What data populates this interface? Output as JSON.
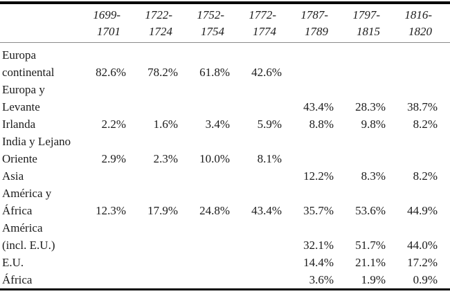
{
  "table": {
    "columns": [
      [
        "1699-",
        "1701"
      ],
      [
        "1722-",
        "1724"
      ],
      [
        "1752-",
        "1754"
      ],
      [
        "1772-",
        "1774"
      ],
      [
        "1787-",
        "1789"
      ],
      [
        "1797-",
        "1815"
      ],
      [
        "1816-",
        "1820"
      ]
    ],
    "rows": [
      {
        "label": [
          "Europa",
          "continental"
        ],
        "values": [
          "82.6%",
          "78.2%",
          "61.8%",
          "42.6%",
          "",
          "",
          ""
        ]
      },
      {
        "label": [
          "Europa y",
          "Levante"
        ],
        "values": [
          "",
          "",
          "",
          "",
          "43.4%",
          "28.3%",
          "38.7%"
        ]
      },
      {
        "label": [
          "Irlanda"
        ],
        "values": [
          "2.2%",
          "1.6%",
          "3.4%",
          "5.9%",
          "8.8%",
          "9.8%",
          "8.2%"
        ]
      },
      {
        "label": [
          "India y Lejano",
          "Oriente"
        ],
        "values": [
          "2.9%",
          "2.3%",
          "10.0%",
          "8.1%",
          "",
          "",
          ""
        ]
      },
      {
        "label": [
          "Asia"
        ],
        "values": [
          "",
          "",
          "",
          "",
          "12.2%",
          "8.3%",
          "8.2%"
        ]
      },
      {
        "label": [
          "América y",
          "África"
        ],
        "values": [
          "12.3%",
          "17.9%",
          "24.8%",
          "43.4%",
          "35.7%",
          "53.6%",
          "44.9%"
        ]
      },
      {
        "label": [
          "América",
          "(incl. E.U.)"
        ],
        "values": [
          "",
          "",
          "",
          "",
          "32.1%",
          "51.7%",
          "44.0%"
        ]
      },
      {
        "label": [
          "E.U."
        ],
        "values": [
          "",
          "",
          "",
          "",
          "14.4%",
          "21.1%",
          "17.2%"
        ]
      },
      {
        "label": [
          "África"
        ],
        "values": [
          "",
          "",
          "",
          "",
          "3.6%",
          "1.9%",
          "0.9%"
        ]
      }
    ]
  },
  "chart_data": {
    "type": "table",
    "title": "",
    "columns": [
      "1699-1701",
      "1722-1724",
      "1752-1754",
      "1772-1774",
      "1787-1789",
      "1797-1815",
      "1816-1820"
    ],
    "rows": [
      {
        "category": "Europa continental",
        "values": [
          82.6,
          78.2,
          61.8,
          42.6,
          null,
          null,
          null
        ],
        "unit": "%"
      },
      {
        "category": "Europa y Levante",
        "values": [
          null,
          null,
          null,
          null,
          43.4,
          28.3,
          38.7
        ],
        "unit": "%"
      },
      {
        "category": "Irlanda",
        "values": [
          2.2,
          1.6,
          3.4,
          5.9,
          8.8,
          9.8,
          8.2
        ],
        "unit": "%"
      },
      {
        "category": "India y Lejano Oriente",
        "values": [
          2.9,
          2.3,
          10.0,
          8.1,
          null,
          null,
          null
        ],
        "unit": "%"
      },
      {
        "category": "Asia",
        "values": [
          null,
          null,
          null,
          null,
          12.2,
          8.3,
          8.2
        ],
        "unit": "%"
      },
      {
        "category": "América y África",
        "values": [
          12.3,
          17.9,
          24.8,
          43.4,
          35.7,
          53.6,
          44.9
        ],
        "unit": "%"
      },
      {
        "category": "América (incl. E.U.)",
        "values": [
          null,
          null,
          null,
          null,
          32.1,
          51.7,
          44.0
        ],
        "unit": "%"
      },
      {
        "category": "E.U.",
        "values": [
          null,
          null,
          null,
          null,
          14.4,
          21.1,
          17.2
        ],
        "unit": "%"
      },
      {
        "category": "África",
        "values": [
          null,
          null,
          null,
          null,
          3.6,
          1.9,
          0.9
        ],
        "unit": "%"
      }
    ]
  }
}
